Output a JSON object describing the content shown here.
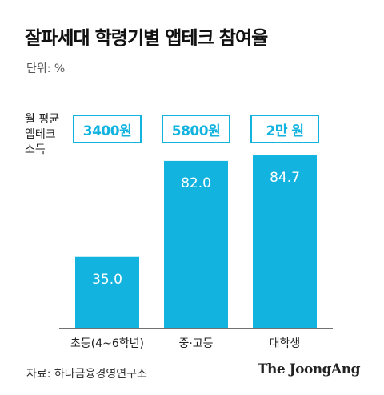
{
  "title": "잘파세대 학령기별 앱테크 참여율",
  "unit_label": "단위: %",
  "income_label_lines": [
    "월 평균",
    "앱테크",
    "소득"
  ],
  "source": "자료: 하나금융경영연구소",
  "logo": "The JoongAng",
  "colors": {
    "bar": "#13b3e0",
    "accent": "#13b3e0",
    "axis": "#444444"
  },
  "chart_data": {
    "type": "bar",
    "categories": [
      "초등(4~6학년)",
      "중·고등",
      "대학생"
    ],
    "values": [
      35.0,
      82.0,
      84.7
    ],
    "value_labels": [
      "35.0",
      "82.0",
      "84.7"
    ],
    "monthly_income": [
      "3400원",
      "5800원",
      "2만 원"
    ],
    "ylim": [
      0,
      100
    ],
    "grid": false,
    "legend": "none"
  }
}
